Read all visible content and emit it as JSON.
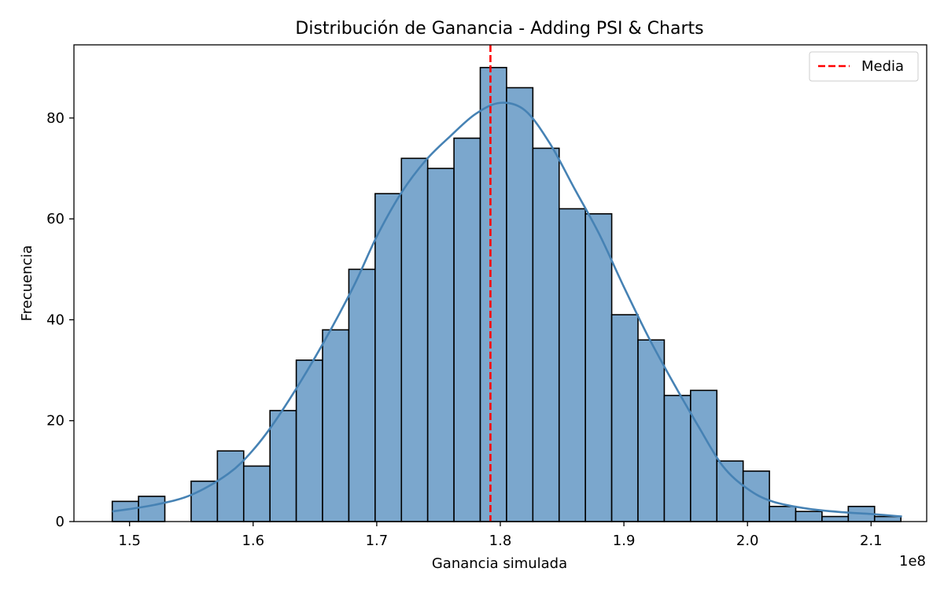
{
  "chart_data": {
    "type": "histogram",
    "title": "Distribución de Ganancia - Adding PSI & Charts",
    "xlabel": "Ganancia simulada",
    "ylabel": "Frecuencia",
    "x_offset_label": "1e8",
    "xlim": [
      1.455,
      2.145
    ],
    "ylim": [
      0,
      94.5
    ],
    "x_ticks": [
      1.5,
      1.6,
      1.7,
      1.8,
      1.9,
      2.0,
      2.1
    ],
    "x_tick_labels": [
      "1.5",
      "1.6",
      "1.7",
      "1.8",
      "1.9",
      "2.0",
      "2.1"
    ],
    "y_ticks": [
      0,
      20,
      40,
      60,
      80
    ],
    "y_tick_labels": [
      "0",
      "20",
      "40",
      "60",
      "80"
    ],
    "bin_start": 1.486,
    "bin_width": 0.02127,
    "counts": [
      4,
      5,
      0,
      8,
      14,
      11,
      22,
      32,
      38,
      50,
      65,
      72,
      70,
      76,
      90,
      86,
      74,
      62,
      61,
      41,
      36,
      25,
      26,
      12,
      10,
      3,
      2,
      1,
      3,
      1
    ],
    "kde": {
      "name": "KDE",
      "x": [
        1.486,
        1.52,
        1.55,
        1.58,
        1.6,
        1.62,
        1.65,
        1.68,
        1.7,
        1.72,
        1.74,
        1.76,
        1.78,
        1.8,
        1.82,
        1.84,
        1.86,
        1.88,
        1.9,
        1.92,
        1.94,
        1.96,
        1.98,
        2.0,
        2.02,
        2.05,
        2.08,
        2.1,
        2.125
      ],
      "y": [
        2,
        3.3,
        5.3,
        9.5,
        14.2,
        20.7,
        32.5,
        46,
        56.5,
        65.2,
        71.7,
        76.5,
        80.8,
        83,
        81.5,
        75,
        66,
        57,
        46.5,
        36.5,
        27.5,
        19,
        11,
        6.5,
        4,
        2.5,
        1.8,
        1.5,
        1
      ]
    },
    "mean_line": {
      "x": 1.792,
      "label": "Media",
      "color": "#ff0000",
      "style": "dashed"
    },
    "bar_fill": "#7ba7cd",
    "bar_edge": "#000000",
    "kde_color": "#4682b4",
    "legend_position": "top-right",
    "grid": false
  }
}
